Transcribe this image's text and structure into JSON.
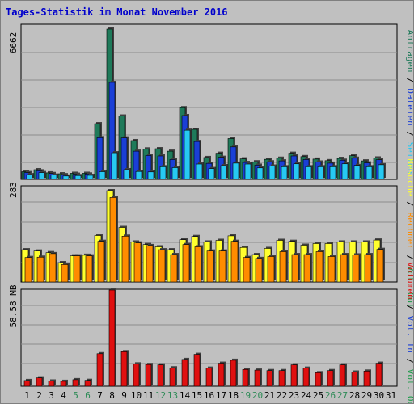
{
  "title": "Tages-Statistik im Monat November 2016",
  "colors": {
    "background": "#c0c0c0",
    "grid": "#8c8c8c",
    "weekday": "#000000",
    "weekend": "#2e8b57",
    "anfragen": "#1f7a5a",
    "dateien": "#1a3fd6",
    "seiten": "#27c9f2",
    "besuche": "#ffff2e",
    "rechner": "#ff8c00",
    "volumen": "#e01010"
  },
  "chart_data": [
    {
      "type": "bar",
      "panel": "top",
      "max_label": "6662",
      "categories": [
        "1",
        "2",
        "3",
        "4",
        "5",
        "6",
        "7",
        "8",
        "9",
        "10",
        "11",
        "12",
        "13",
        "14",
        "15",
        "16",
        "17",
        "18",
        "19",
        "20",
        "21",
        "22",
        "23",
        "24",
        "25",
        "26",
        "27",
        "28",
        "29",
        "30",
        "31"
      ],
      "series": [
        {
          "name": "Anfragen",
          "values": [
            340,
            430,
            290,
            250,
            270,
            270,
            2470,
            6662,
            2810,
            1720,
            1350,
            1360,
            1250,
            3180,
            2220,
            970,
            1160,
            1810,
            910,
            780,
            890,
            940,
            1160,
            1010,
            900,
            830,
            930,
            1050,
            820,
            950,
            0
          ]
        },
        {
          "name": "Dateien",
          "values": [
            300,
            380,
            260,
            210,
            230,
            240,
            1850,
            4300,
            1840,
            1250,
            1060,
            1040,
            880,
            2830,
            1680,
            710,
            980,
            1440,
            750,
            630,
            780,
            820,
            1040,
            880,
            770,
            720,
            850,
            940,
            730,
            870,
            0
          ]
        },
        {
          "name": "Seiten",
          "values": [
            210,
            300,
            190,
            150,
            170,
            180,
            340,
            1180,
            430,
            350,
            330,
            560,
            520,
            2180,
            680,
            480,
            610,
            720,
            680,
            510,
            590,
            560,
            690,
            560,
            560,
            560,
            690,
            620,
            560,
            650,
            0
          ]
        }
      ],
      "legend": [
        "Anfragen",
        "/",
        "Dateien",
        "/",
        "Seiten"
      ]
    },
    {
      "type": "bar",
      "panel": "middle",
      "max_label": "283",
      "categories": [
        "1",
        "2",
        "3",
        "4",
        "5",
        "6",
        "7",
        "8",
        "9",
        "10",
        "11",
        "12",
        "13",
        "14",
        "15",
        "16",
        "17",
        "18",
        "19",
        "20",
        "21",
        "22",
        "23",
        "24",
        "25",
        "26",
        "27",
        "28",
        "29",
        "30",
        "31"
      ],
      "series": [
        {
          "name": "Besuche",
          "values": [
            100,
            96,
            91,
            60,
            81,
            83,
            144,
            283,
            169,
            124,
            116,
            109,
            100,
            131,
            141,
            124,
            129,
            143,
            107,
            85,
            104,
            129,
            126,
            114,
            119,
            119,
            124,
            124,
            124,
            130,
            0
          ]
        },
        {
          "name": "Rechner",
          "values": [
            76,
            77,
            88,
            54,
            81,
            81,
            126,
            262,
            142,
            121,
            113,
            100,
            85,
            116,
            109,
            96,
            96,
            126,
            76,
            73,
            79,
            94,
            85,
            85,
            94,
            79,
            85,
            84,
            85,
            101,
            0
          ]
        }
      ],
      "legend": [
        "Besuche",
        "/",
        "Rechner",
        "/",
        "Vol. Out"
      ]
    },
    {
      "type": "bar",
      "panel": "bottom",
      "max_label": "58.58 MB",
      "categories": [
        "1",
        "2",
        "3",
        "4",
        "5",
        "6",
        "7",
        "8",
        "9",
        "10",
        "11",
        "12",
        "13",
        "14",
        "15",
        "16",
        "17",
        "18",
        "19",
        "20",
        "21",
        "22",
        "23",
        "24",
        "25",
        "26",
        "27",
        "28",
        "29",
        "30",
        "31"
      ],
      "series": [
        {
          "name": "Volumen",
          "values": [
            3.5,
            5.1,
            3.2,
            3.0,
            4.0,
            3.6,
            19.8,
            58.58,
            21.0,
            13.6,
            13.2,
            13.0,
            11.2,
            16.3,
            19.4,
            11.0,
            14.0,
            15.8,
            10.2,
            9.8,
            9.5,
            9.5,
            13.0,
            11.0,
            8.2,
            9.5,
            13.0,
            8.6,
            9.2,
            14.0,
            0
          ]
        }
      ],
      "legend": [
        "Volumen",
        "/",
        "Vol. In",
        "/",
        "Vol. Out"
      ]
    }
  ],
  "x_labels": [
    {
      "text": "1",
      "weekend": false
    },
    {
      "text": "2",
      "weekend": false
    },
    {
      "text": "3",
      "weekend": false
    },
    {
      "text": "4",
      "weekend": false
    },
    {
      "text": "5",
      "weekend": true
    },
    {
      "text": "6",
      "weekend": true
    },
    {
      "text": "7",
      "weekend": false
    },
    {
      "text": "8",
      "weekend": false
    },
    {
      "text": "9",
      "weekend": false
    },
    {
      "text": "10",
      "weekend": false
    },
    {
      "text": "11",
      "weekend": false
    },
    {
      "text": "12",
      "weekend": true
    },
    {
      "text": "13",
      "weekend": true
    },
    {
      "text": "14",
      "weekend": false
    },
    {
      "text": "15",
      "weekend": false
    },
    {
      "text": "16",
      "weekend": false
    },
    {
      "text": "17",
      "weekend": false
    },
    {
      "text": "18",
      "weekend": false
    },
    {
      "text": "19",
      "weekend": true
    },
    {
      "text": "20",
      "weekend": true
    },
    {
      "text": "21",
      "weekend": false
    },
    {
      "text": "22",
      "weekend": false
    },
    {
      "text": "23",
      "weekend": false
    },
    {
      "text": "24",
      "weekend": false
    },
    {
      "text": "25",
      "weekend": false
    },
    {
      "text": "26",
      "weekend": true
    },
    {
      "text": "27",
      "weekend": true
    },
    {
      "text": "28",
      "weekend": false
    },
    {
      "text": "29",
      "weekend": false
    },
    {
      "text": "30",
      "weekend": false
    },
    {
      "text": "31",
      "weekend": false
    }
  ]
}
